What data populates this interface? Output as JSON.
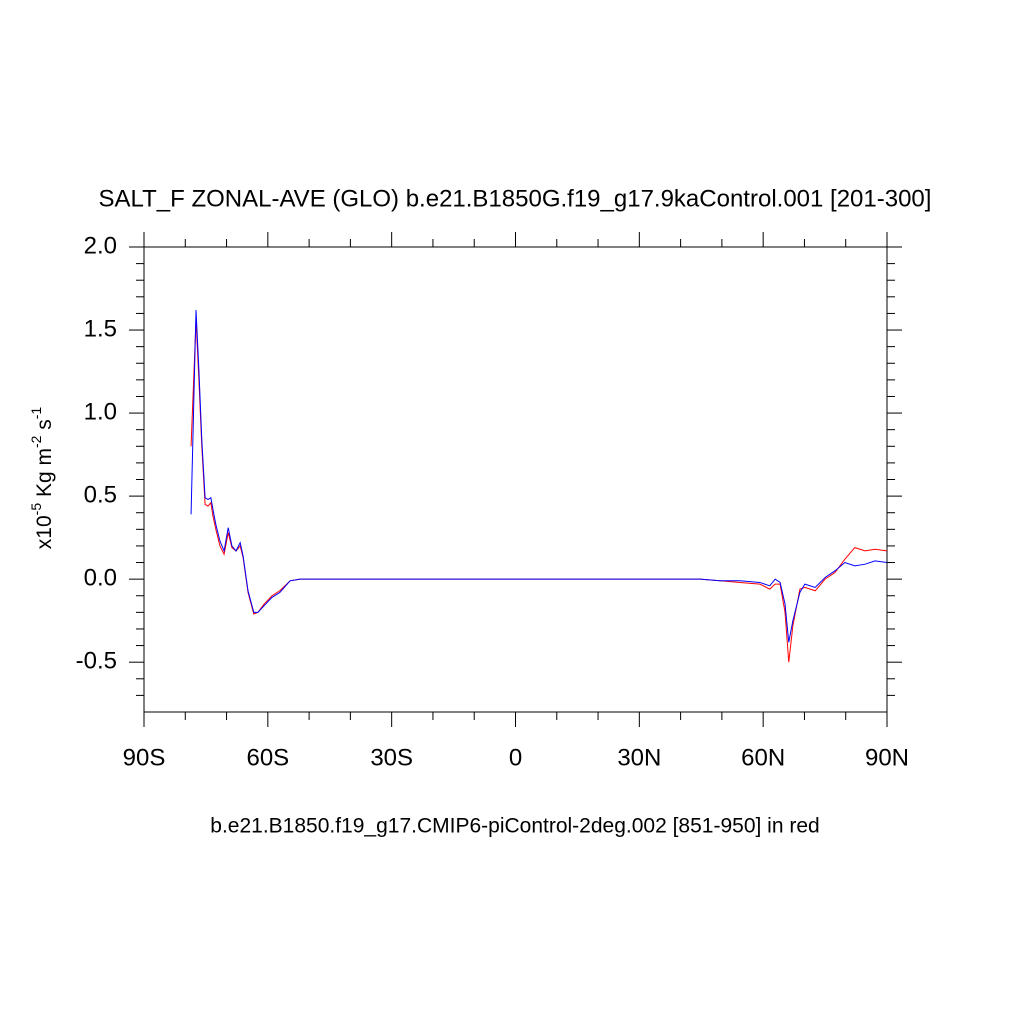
{
  "chart_data": {
    "type": "line",
    "title": "SALT_F ZONAL-AVE (GLO) b.e21.B1850G.f19_g17.9kaControl.001 [201-300]",
    "subtitle": "b.e21.B1850.f19_g17.CMIP6-piControl-2deg.002 [851-950] in red",
    "ylabel": [
      "x10",
      "-5",
      " Kg m",
      "-2",
      " s",
      "-1"
    ],
    "x": [
      -78.6,
      -77.4,
      -76.7,
      -76.0,
      -75.2,
      -74.5,
      -73.8,
      -73.3,
      -72.6,
      -71.6,
      -70.6,
      -69.6,
      -68.7,
      -67.7,
      -66.7,
      -66.0,
      -64.8,
      -63.4,
      -62.4,
      -60.9,
      -59.0,
      -57.1,
      -54.6,
      -52.2,
      -30,
      0,
      30,
      44.7,
      49.5,
      54.4,
      59.2,
      61.6,
      62.9,
      64.1,
      65.3,
      66.2,
      67.2,
      68.9,
      70.1,
      72.6,
      75.0,
      77.4,
      79.8,
      82.2,
      84.7,
      87.1,
      90
    ],
    "series": [
      {
        "color": "#ff0000",
        "values": [
          0.8,
          1.56,
          1.2,
          0.8,
          0.45,
          0.44,
          0.46,
          0.38,
          0.3,
          0.2,
          0.15,
          0.28,
          0.19,
          0.17,
          0.2,
          0.13,
          -0.08,
          -0.21,
          -0.2,
          -0.15,
          -0.1,
          -0.07,
          -0.01,
          0,
          0,
          0,
          0,
          0,
          -0.01,
          -0.02,
          -0.03,
          -0.06,
          -0.03,
          -0.03,
          -0.2,
          -0.5,
          -0.28,
          -0.06,
          -0.05,
          -0.07,
          0.0,
          0.04,
          0.12,
          0.19,
          0.17,
          0.18,
          0.17
        ]
      },
      {
        "color": "#0000ff",
        "values": [
          0.39,
          1.62,
          1.26,
          0.84,
          0.49,
          0.48,
          0.49,
          0.42,
          0.33,
          0.23,
          0.17,
          0.31,
          0.2,
          0.17,
          0.22,
          0.14,
          -0.07,
          -0.2,
          -0.2,
          -0.16,
          -0.11,
          -0.08,
          -0.01,
          0,
          0,
          0,
          0,
          0,
          -0.01,
          -0.01,
          -0.02,
          -0.04,
          0.0,
          -0.02,
          -0.15,
          -0.38,
          -0.25,
          -0.08,
          -0.03,
          -0.05,
          0.01,
          0.05,
          0.1,
          0.08,
          0.09,
          0.11,
          0.1
        ]
      }
    ],
    "xlim": [
      -90,
      90
    ],
    "xticks": [
      {
        "value": -90,
        "label": "90S"
      },
      {
        "value": -60,
        "label": "60S"
      },
      {
        "value": -30,
        "label": "30S"
      },
      0,
      {
        "value": 30,
        "label": "30N"
      },
      {
        "value": 60,
        "label": "60N"
      },
      {
        "value": 90,
        "label": "90N"
      }
    ],
    "xminorticks": [
      -80,
      -70,
      -50,
      -40,
      -20,
      -10,
      10,
      20,
      40,
      50,
      70,
      80
    ],
    "ylim": [
      -0.8,
      2.0
    ],
    "yticks": [
      {
        "value": -0.5,
        "label": "-0.5"
      },
      {
        "value": 0,
        "label": "0.0"
      },
      {
        "value": 0.5,
        "label": "0.5"
      },
      {
        "value": 1,
        "label": "1.0"
      },
      {
        "value": 1.5,
        "label": "1.5"
      },
      {
        "value": 2,
        "label": "2.0"
      }
    ],
    "yminorticks": [
      -0.7,
      -0.6,
      -0.4,
      -0.3,
      -0.2,
      -0.1,
      0.1,
      0.2,
      0.3,
      0.4,
      0.6,
      0.7,
      0.8,
      0.9,
      1.1,
      1.2,
      1.3,
      1.4,
      1.6,
      1.7,
      1.8,
      1.9
    ],
    "grid": false
  }
}
